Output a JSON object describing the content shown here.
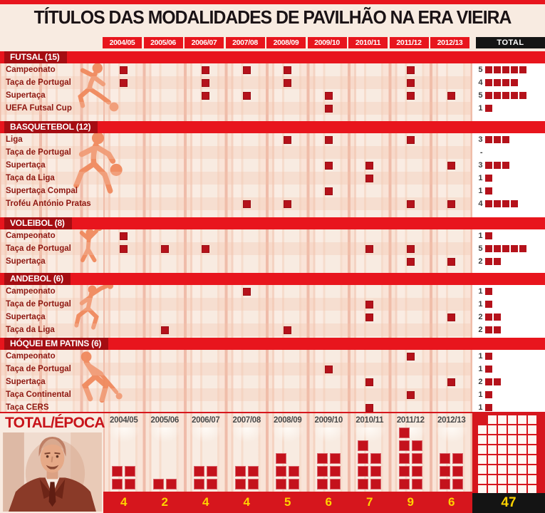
{
  "title": "TÍTULOS DAS MODALIDADES DE PAVILHÃO NA ERA VIEIRA",
  "header": {
    "seasons": [
      "2004/05",
      "2005/06",
      "2006/07",
      "2007/08",
      "2008/09",
      "2009/10",
      "2010/11",
      "2011/12",
      "2012/13"
    ],
    "total_label": "TOTAL"
  },
  "footer": {
    "label": "TOTAL/ÉPOCA",
    "season_labels": [
      "2004/05",
      "2005/06",
      "2006/07",
      "2007/08",
      "2008/09",
      "2009/10",
      "2010/11",
      "2011/12",
      "2012/13"
    ],
    "season_totals": [
      "4",
      "2",
      "4",
      "4",
      "5",
      "6",
      "7",
      "9",
      "6"
    ],
    "grand_total": "47",
    "photo": "luis-filipe-vieira-portrait"
  },
  "colors": {
    "accent_red": "#e8151d",
    "dark_red_label": "#a50d12",
    "square_red": "#b5121b",
    "footer_red": "#d6161d",
    "number_yellow": "#ffd200",
    "band_black": "#141414",
    "icon_orange": "#f0875a"
  },
  "chart_data": {
    "type": "heatmap",
    "title": "TÍTULOS DAS MODALIDADES DE PAVILHÃO NA ERA VIEIRA",
    "columns": [
      "2004/05",
      "2005/06",
      "2006/07",
      "2007/08",
      "2008/09",
      "2009/10",
      "2010/11",
      "2011/12",
      "2012/13",
      "TOTAL"
    ],
    "sections": [
      {
        "name": "FUTSAL (15)",
        "icon": "futsal-player-icon",
        "rows": [
          {
            "label": "Campeonato",
            "wins": [
              1,
              0,
              1,
              1,
              1,
              0,
              0,
              1,
              0
            ],
            "total": "5"
          },
          {
            "label": "Taça de Portugal",
            "wins": [
              1,
              0,
              1,
              0,
              1,
              0,
              0,
              1,
              0
            ],
            "total": "4"
          },
          {
            "label": "Supertaça",
            "wins": [
              0,
              0,
              1,
              1,
              0,
              1,
              0,
              1,
              1
            ],
            "total": "5"
          },
          {
            "label": "UEFA Futsal Cup",
            "wins": [
              0,
              0,
              0,
              0,
              0,
              1,
              0,
              0,
              0
            ],
            "total": "1"
          }
        ]
      },
      {
        "name": "BASQUETEBOL (12)",
        "icon": "basketball-player-icon",
        "rows": [
          {
            "label": "Liga",
            "wins": [
              0,
              0,
              0,
              0,
              1,
              1,
              0,
              1,
              0
            ],
            "total": "3"
          },
          {
            "label": "Taça de Portugal",
            "wins": [
              0,
              0,
              0,
              0,
              0,
              0,
              0,
              0,
              0
            ],
            "total": "-"
          },
          {
            "label": "Supertaça",
            "wins": [
              0,
              0,
              0,
              0,
              0,
              1,
              1,
              0,
              1
            ],
            "total": "3"
          },
          {
            "label": "Taça da Liga",
            "wins": [
              0,
              0,
              0,
              0,
              0,
              0,
              1,
              0,
              0
            ],
            "total": "1"
          },
          {
            "label": "Supertaça Compal",
            "wins": [
              0,
              0,
              0,
              0,
              0,
              1,
              0,
              0,
              0
            ],
            "total": "1"
          },
          {
            "label": "Troféu António Pratas",
            "wins": [
              0,
              0,
              0,
              1,
              1,
              0,
              0,
              1,
              1
            ],
            "total": "4"
          }
        ]
      },
      {
        "name": "VOLEIBOL (8)",
        "icon": "volleyball-player-icon",
        "rows": [
          {
            "label": "Campeonato",
            "wins": [
              1,
              0,
              0,
              0,
              0,
              0,
              0,
              0,
              0
            ],
            "total": "1"
          },
          {
            "label": "Taça de Portugal",
            "wins": [
              1,
              1,
              1,
              0,
              0,
              0,
              1,
              1,
              0
            ],
            "total": "5"
          },
          {
            "label": "Supertaça",
            "wins": [
              0,
              0,
              0,
              0,
              0,
              0,
              0,
              1,
              1
            ],
            "total": "2"
          }
        ]
      },
      {
        "name": "ANDEBOL (6)",
        "icon": "handball-player-icon",
        "rows": [
          {
            "label": "Campeonato",
            "wins": [
              0,
              0,
              0,
              1,
              0,
              0,
              0,
              0,
              0
            ],
            "total": "1"
          },
          {
            "label": "Taça de Portugal",
            "wins": [
              0,
              0,
              0,
              0,
              0,
              0,
              1,
              0,
              0
            ],
            "total": "1"
          },
          {
            "label": "Supertaça",
            "wins": [
              0,
              0,
              0,
              0,
              0,
              0,
              1,
              0,
              1
            ],
            "total": "2"
          },
          {
            "label": "Taça da Liga",
            "wins": [
              0,
              1,
              0,
              0,
              1,
              0,
              0,
              0,
              0
            ],
            "total": "2"
          }
        ]
      },
      {
        "name": "HÓQUEI EM PATINS (6)",
        "icon": "roller-hockey-player-icon",
        "rows": [
          {
            "label": "Campeonato",
            "wins": [
              0,
              0,
              0,
              0,
              0,
              0,
              0,
              1,
              0
            ],
            "total": "1"
          },
          {
            "label": "Taça de Portugal",
            "wins": [
              0,
              0,
              0,
              0,
              0,
              1,
              0,
              0,
              0
            ],
            "total": "1"
          },
          {
            "label": "Supertaça",
            "wins": [
              0,
              0,
              0,
              0,
              0,
              0,
              1,
              0,
              1
            ],
            "total": "2"
          },
          {
            "label": "Taça Continental",
            "wins": [
              0,
              0,
              0,
              0,
              0,
              0,
              0,
              1,
              0
            ],
            "total": "1"
          },
          {
            "label": "Taça CERS",
            "wins": [
              0,
              0,
              0,
              0,
              0,
              0,
              1,
              0,
              0
            ],
            "total": "1"
          }
        ]
      }
    ],
    "per_season_totals": [
      4,
      2,
      4,
      4,
      5,
      6,
      7,
      9,
      6
    ],
    "grand_total": 47
  }
}
